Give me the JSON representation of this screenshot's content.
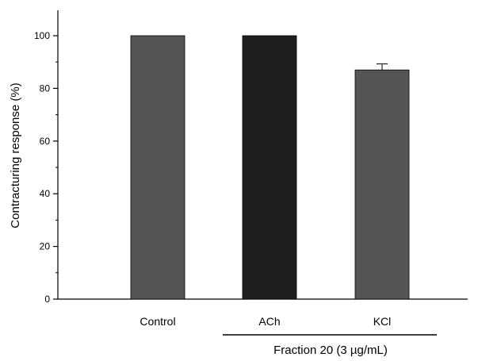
{
  "chart_data": {
    "type": "bar",
    "categories": [
      "Control",
      "ACh",
      "KCl"
    ],
    "values": [
      100,
      100,
      87
    ],
    "errors": [
      0,
      0,
      2.3
    ],
    "colors": [
      "#555555",
      "#1e1e1e",
      "#555555"
    ],
    "ylabel": "Contracturing response (%)",
    "xlabel": "",
    "ylim": [
      0,
      110
    ],
    "yticks": [
      "0",
      "20",
      "40",
      "60",
      "80",
      "100"
    ],
    "group_label": "Fraction 20 (3 µg/mL)",
    "grid": false,
    "legend": "none"
  }
}
